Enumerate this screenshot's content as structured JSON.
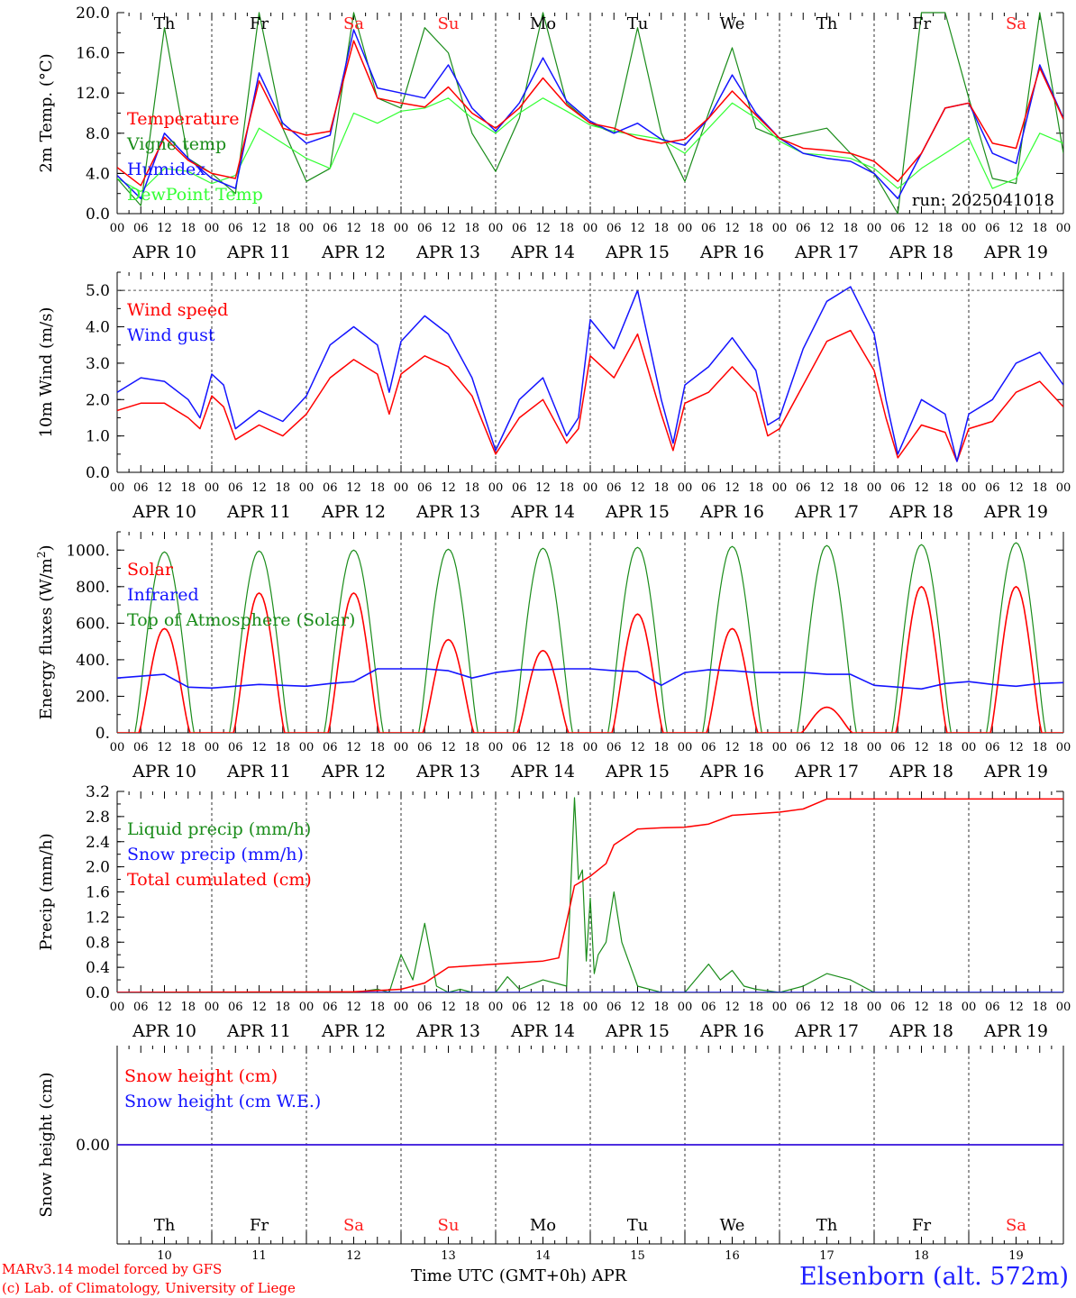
{
  "footer": {
    "model": "MARv3.14 model forced by GFS",
    "credit": "(c) Lab. of Climatology, University of Liege",
    "time_label": "Time UTC (GMT+0h) APR",
    "station": "Elsenborn (alt. 572m)"
  },
  "colors": {
    "red": "#ff0000",
    "blue": "#1414ff",
    "green": "#1a8c1a",
    "lightgreen": "#33ff33",
    "weekend": "#ff2020"
  },
  "time_axis": {
    "hour_ticks": [
      "00",
      "06",
      "12",
      "18"
    ],
    "end_tick": "00",
    "days": [
      {
        "date": "APR 10",
        "weekday": "Th",
        "num": "10",
        "weekend": false
      },
      {
        "date": "APR 11",
        "weekday": "Fr",
        "num": "11",
        "weekend": false
      },
      {
        "date": "APR 12",
        "weekday": "Sa",
        "num": "12",
        "weekend": true
      },
      {
        "date": "APR 13",
        "weekday": "Su",
        "num": "13",
        "weekend": true
      },
      {
        "date": "APR 14",
        "weekday": "Mo",
        "num": "14",
        "weekend": false
      },
      {
        "date": "APR 15",
        "weekday": "Tu",
        "num": "15",
        "weekend": false
      },
      {
        "date": "APR 16",
        "weekday": "We",
        "num": "16",
        "weekend": false
      },
      {
        "date": "APR 17",
        "weekday": "Th",
        "num": "17",
        "weekend": false
      },
      {
        "date": "APR 18",
        "weekday": "Fr",
        "num": "18",
        "weekend": false
      },
      {
        "date": "APR 19",
        "weekday": "Sa",
        "num": "19",
        "weekend": true
      }
    ]
  },
  "chart_data": [
    {
      "type": "line",
      "ylabel": "2m Temp. (°C)",
      "ylim": [
        0,
        20
      ],
      "yticks": [
        "0.0",
        "4.0",
        "8.0",
        "12.0",
        "16.0",
        "20.0"
      ],
      "ytick_values": [
        0,
        4,
        8,
        12,
        16,
        20
      ],
      "annotation": "run: 2025041018",
      "x_unit": "hours since APR 10 00 UTC",
      "series": [
        {
          "name": "Temperature",
          "color": "red",
          "x": [
            0,
            6,
            12,
            18,
            24,
            30,
            36,
            42,
            48,
            54,
            60,
            66,
            72,
            78,
            84,
            90,
            96,
            102,
            108,
            114,
            120,
            126,
            132,
            138,
            144,
            150,
            156,
            162,
            168,
            174,
            180,
            186,
            192,
            198,
            204,
            210,
            216,
            222,
            228,
            234,
            240
          ],
          "values": [
            4.6,
            2.8,
            7.6,
            5.3,
            4.0,
            3.5,
            13.2,
            8.5,
            7.8,
            8.2,
            17.2,
            11.5,
            11.0,
            10.6,
            12.6,
            10.0,
            8.5,
            10.5,
            13.5,
            10.8,
            9.0,
            8.5,
            7.5,
            7.0,
            7.4,
            9.5,
            12.2,
            9.8,
            7.5,
            6.5,
            6.3,
            6.0,
            5.2,
            3.2,
            6.0,
            10.5,
            11.0,
            7.0,
            6.5,
            14.5,
            9.4
          ]
        },
        {
          "name": "Vigne temp",
          "color": "green",
          "x": [
            0,
            6,
            12,
            18,
            24,
            30,
            36,
            42,
            48,
            54,
            60,
            66,
            72,
            78,
            84,
            90,
            96,
            102,
            108,
            114,
            120,
            126,
            132,
            138,
            144,
            150,
            156,
            162,
            168,
            174,
            180,
            186,
            192,
            198,
            204,
            210,
            216,
            222,
            228,
            234,
            240
          ],
          "values": [
            3.5,
            0.8,
            18.5,
            5.5,
            4.0,
            2.0,
            20.0,
            8.5,
            3.2,
            4.5,
            20.0,
            11.5,
            10.5,
            18.5,
            16.0,
            8.0,
            4.2,
            9.5,
            20.0,
            11.0,
            9.0,
            8.0,
            18.5,
            8.0,
            3.2,
            10.0,
            16.5,
            8.5,
            7.5,
            8.0,
            8.5,
            6.0,
            4.0,
            0.0,
            20.0,
            20.0,
            11.5,
            3.5,
            3.0,
            20.0,
            6.0
          ]
        },
        {
          "name": "Humidex",
          "color": "blue",
          "x": [
            0,
            6,
            12,
            18,
            24,
            30,
            36,
            42,
            48,
            54,
            60,
            66,
            72,
            78,
            84,
            90,
            96,
            102,
            108,
            114,
            120,
            126,
            132,
            138,
            144,
            150,
            156,
            162,
            168,
            174,
            180,
            186,
            192,
            198,
            204,
            210,
            216,
            222,
            228,
            234,
            240
          ],
          "values": [
            3.8,
            1.5,
            8.0,
            5.5,
            3.5,
            2.5,
            14.0,
            9.0,
            7.0,
            7.8,
            18.3,
            12.5,
            12.0,
            11.5,
            14.8,
            10.5,
            8.2,
            11.0,
            15.5,
            11.2,
            9.2,
            8.0,
            9.0,
            7.4,
            6.8,
            9.5,
            13.8,
            10.0,
            7.5,
            6.0,
            5.5,
            5.2,
            4.0,
            1.5,
            6.0,
            10.5,
            11.0,
            6.0,
            5.0,
            14.8,
            9.5
          ]
        },
        {
          "name": "DewPoint Temp",
          "color": "lightgreen",
          "x": [
            0,
            6,
            12,
            18,
            24,
            30,
            36,
            42,
            48,
            54,
            60,
            66,
            72,
            78,
            84,
            90,
            96,
            102,
            108,
            114,
            120,
            126,
            132,
            138,
            144,
            150,
            156,
            162,
            168,
            174,
            180,
            186,
            192,
            198,
            204,
            210,
            216,
            222,
            228,
            234,
            240
          ],
          "values": [
            3.5,
            2.2,
            4.5,
            4.2,
            3.0,
            3.8,
            8.5,
            7.0,
            5.5,
            4.5,
            10.0,
            9.0,
            10.2,
            10.5,
            11.5,
            9.5,
            8.0,
            10.0,
            11.5,
            10.2,
            8.8,
            8.2,
            7.8,
            7.4,
            6.0,
            8.5,
            11.0,
            9.5,
            7.2,
            6.0,
            5.8,
            5.5,
            4.5,
            2.5,
            4.5,
            6.0,
            7.5,
            2.5,
            3.5,
            8.0,
            7.0
          ]
        }
      ],
      "legend": [
        "Temperature",
        "Vigne temp",
        "Humidex",
        "DewPoint Temp"
      ]
    },
    {
      "type": "line",
      "ylabel": "10m Wind (m/s)",
      "ylim": [
        0,
        5.5
      ],
      "yticks": [
        "0.0",
        "1.0",
        "2.0",
        "3.0",
        "4.0",
        "5.0"
      ],
      "ytick_values": [
        0,
        1,
        2,
        3,
        4,
        5
      ],
      "x_unit": "hours since APR 10 00 UTC",
      "series": [
        {
          "name": "Wind speed",
          "color": "red",
          "x": [
            0,
            6,
            12,
            18,
            21,
            24,
            27,
            30,
            36,
            42,
            48,
            54,
            60,
            66,
            69,
            72,
            78,
            84,
            90,
            96,
            99,
            102,
            108,
            114,
            117,
            120,
            126,
            132,
            138,
            141,
            144,
            150,
            156,
            162,
            165,
            168,
            174,
            180,
            186,
            192,
            195,
            198,
            204,
            210,
            213,
            216,
            222,
            228,
            234,
            240
          ],
          "values": [
            1.7,
            1.9,
            1.9,
            1.5,
            1.2,
            2.1,
            1.8,
            0.9,
            1.3,
            1.0,
            1.6,
            2.6,
            3.1,
            2.7,
            1.6,
            2.7,
            3.2,
            2.9,
            2.1,
            0.5,
            1.0,
            1.5,
            2.0,
            0.8,
            1.2,
            3.2,
            2.6,
            3.8,
            1.6,
            0.6,
            1.9,
            2.2,
            2.9,
            2.2,
            1.0,
            1.2,
            2.4,
            3.6,
            3.9,
            2.8,
            1.5,
            0.4,
            1.3,
            1.1,
            0.3,
            1.2,
            1.4,
            2.2,
            2.5,
            1.8
          ]
        },
        {
          "name": "Wind gust",
          "color": "blue",
          "x": [
            0,
            6,
            12,
            18,
            21,
            24,
            27,
            30,
            36,
            42,
            48,
            54,
            60,
            66,
            69,
            72,
            78,
            84,
            90,
            96,
            99,
            102,
            108,
            114,
            117,
            120,
            126,
            132,
            138,
            141,
            144,
            150,
            156,
            162,
            165,
            168,
            174,
            180,
            186,
            192,
            195,
            198,
            204,
            210,
            213,
            216,
            222,
            228,
            234,
            240
          ],
          "values": [
            2.2,
            2.6,
            2.5,
            2.0,
            1.5,
            2.7,
            2.4,
            1.2,
            1.7,
            1.4,
            2.1,
            3.5,
            4.0,
            3.5,
            2.2,
            3.6,
            4.3,
            3.8,
            2.6,
            0.6,
            1.3,
            2.0,
            2.6,
            1.0,
            1.5,
            4.2,
            3.4,
            5.0,
            2.0,
            0.8,
            2.4,
            2.9,
            3.7,
            2.8,
            1.3,
            1.5,
            3.4,
            4.7,
            5.1,
            3.8,
            2.0,
            0.5,
            2.0,
            1.6,
            0.3,
            1.6,
            2.0,
            3.0,
            3.3,
            2.4
          ]
        }
      ],
      "legend": [
        "Wind speed",
        "Wind gust"
      ]
    },
    {
      "type": "line",
      "ylabel": "Energy fluxes (W/m2)",
      "ylim": [
        0,
        1100
      ],
      "yticks": [
        "0.",
        "200.",
        "400.",
        "600.",
        "800.",
        "1000."
      ],
      "ytick_values": [
        0,
        200,
        400,
        600,
        800,
        1000
      ],
      "x_unit": "hours since APR 10 00 UTC",
      "daily_peaks": {
        "Solar": [
          570,
          765,
          765,
          510,
          450,
          650,
          570,
          140,
          800,
          800
        ],
        "Top of Atmosphere (Solar)": [
          990,
          995,
          1000,
          1005,
          1010,
          1015,
          1020,
          1025,
          1030,
          1040
        ]
      },
      "series": [
        {
          "name": "Infrared",
          "color": "blue",
          "x": [
            0,
            12,
            18,
            24,
            36,
            48,
            54,
            60,
            66,
            72,
            78,
            84,
            90,
            96,
            102,
            108,
            114,
            120,
            126,
            132,
            138,
            144,
            150,
            156,
            162,
            168,
            174,
            180,
            186,
            192,
            198,
            204,
            210,
            216,
            222,
            228,
            234,
            240
          ],
          "values": [
            300,
            320,
            250,
            245,
            265,
            255,
            270,
            280,
            350,
            350,
            350,
            340,
            300,
            330,
            345,
            345,
            350,
            350,
            340,
            335,
            260,
            330,
            345,
            340,
            330,
            330,
            330,
            320,
            320,
            260,
            250,
            240,
            270,
            280,
            265,
            255,
            270,
            275
          ]
        }
      ],
      "legend": [
        "Solar",
        "Infrared",
        "Top of Atmosphere (Solar)"
      ]
    },
    {
      "type": "line",
      "ylabel": "Precip (mm/h)",
      "ylim": [
        0,
        3.2
      ],
      "yticks": [
        "0.0",
        "0.4",
        "0.8",
        "1.2",
        "1.6",
        "2.0",
        "2.4",
        "2.8",
        "3.2"
      ],
      "ytick_values": [
        0,
        0.4,
        0.8,
        1.2,
        1.6,
        2.0,
        2.4,
        2.8,
        3.2
      ],
      "x_unit": "hours since APR 10 00 UTC",
      "series": [
        {
          "name": "Liquid precip (mm/h)",
          "color": "green",
          "x": [
            0,
            60,
            66,
            69,
            72,
            75,
            78,
            81,
            84,
            87,
            90,
            96,
            99,
            102,
            108,
            114,
            116,
            117,
            118,
            119,
            120,
            121,
            122,
            124,
            126,
            128,
            132,
            138,
            144,
            150,
            153,
            156,
            159,
            162,
            168,
            174,
            180,
            186,
            192,
            198,
            240
          ],
          "values": [
            0,
            0,
            0.05,
            0,
            0.6,
            0.2,
            1.1,
            0.1,
            0,
            0.05,
            0,
            0,
            0.25,
            0.05,
            0.2,
            0.1,
            3.1,
            1.8,
            1.95,
            0.5,
            1.5,
            0.3,
            0.6,
            0.8,
            1.6,
            0.8,
            0.1,
            0,
            0,
            0.45,
            0.2,
            0.35,
            0.1,
            0.05,
            0,
            0.1,
            0.3,
            0.2,
            0,
            0,
            0
          ]
        },
        {
          "name": "Snow precip (mm/h)",
          "color": "blue",
          "x": [
            0,
            240
          ],
          "values": [
            0,
            0
          ]
        },
        {
          "name": "Total cumulated (cm)",
          "color": "red",
          "x": [
            0,
            60,
            72,
            78,
            84,
            96,
            108,
            112,
            116,
            120,
            124,
            126,
            132,
            138,
            144,
            150,
            156,
            168,
            174,
            180,
            192,
            204,
            240
          ],
          "values": [
            0,
            0.01,
            0.05,
            0.15,
            0.4,
            0.45,
            0.5,
            0.55,
            1.7,
            1.85,
            2.05,
            2.35,
            2.6,
            2.62,
            2.63,
            2.68,
            2.82,
            2.87,
            2.92,
            3.08,
            3.08,
            3.08,
            3.08
          ]
        }
      ],
      "legend": [
        "Liquid precip (mm/h)",
        "Snow precip (mm/h)",
        "Total cumulated (cm)"
      ]
    },
    {
      "type": "line",
      "ylabel": "Snow height (cm)",
      "ylim": [
        -1,
        1
      ],
      "yticks": [
        "0.00"
      ],
      "ytick_values": [
        0
      ],
      "x_unit": "hours since APR 10 00 UTC",
      "series": [
        {
          "name": "Snow height (cm)",
          "color": "red",
          "x": [
            0,
            240
          ],
          "values": [
            0,
            0
          ]
        },
        {
          "name": "Snow height (cm W.E.)",
          "color": "blue",
          "x": [
            0,
            240
          ],
          "values": [
            0,
            0
          ]
        }
      ],
      "legend": [
        "Snow height (cm)",
        "Snow height (cm W.E.)"
      ]
    }
  ]
}
